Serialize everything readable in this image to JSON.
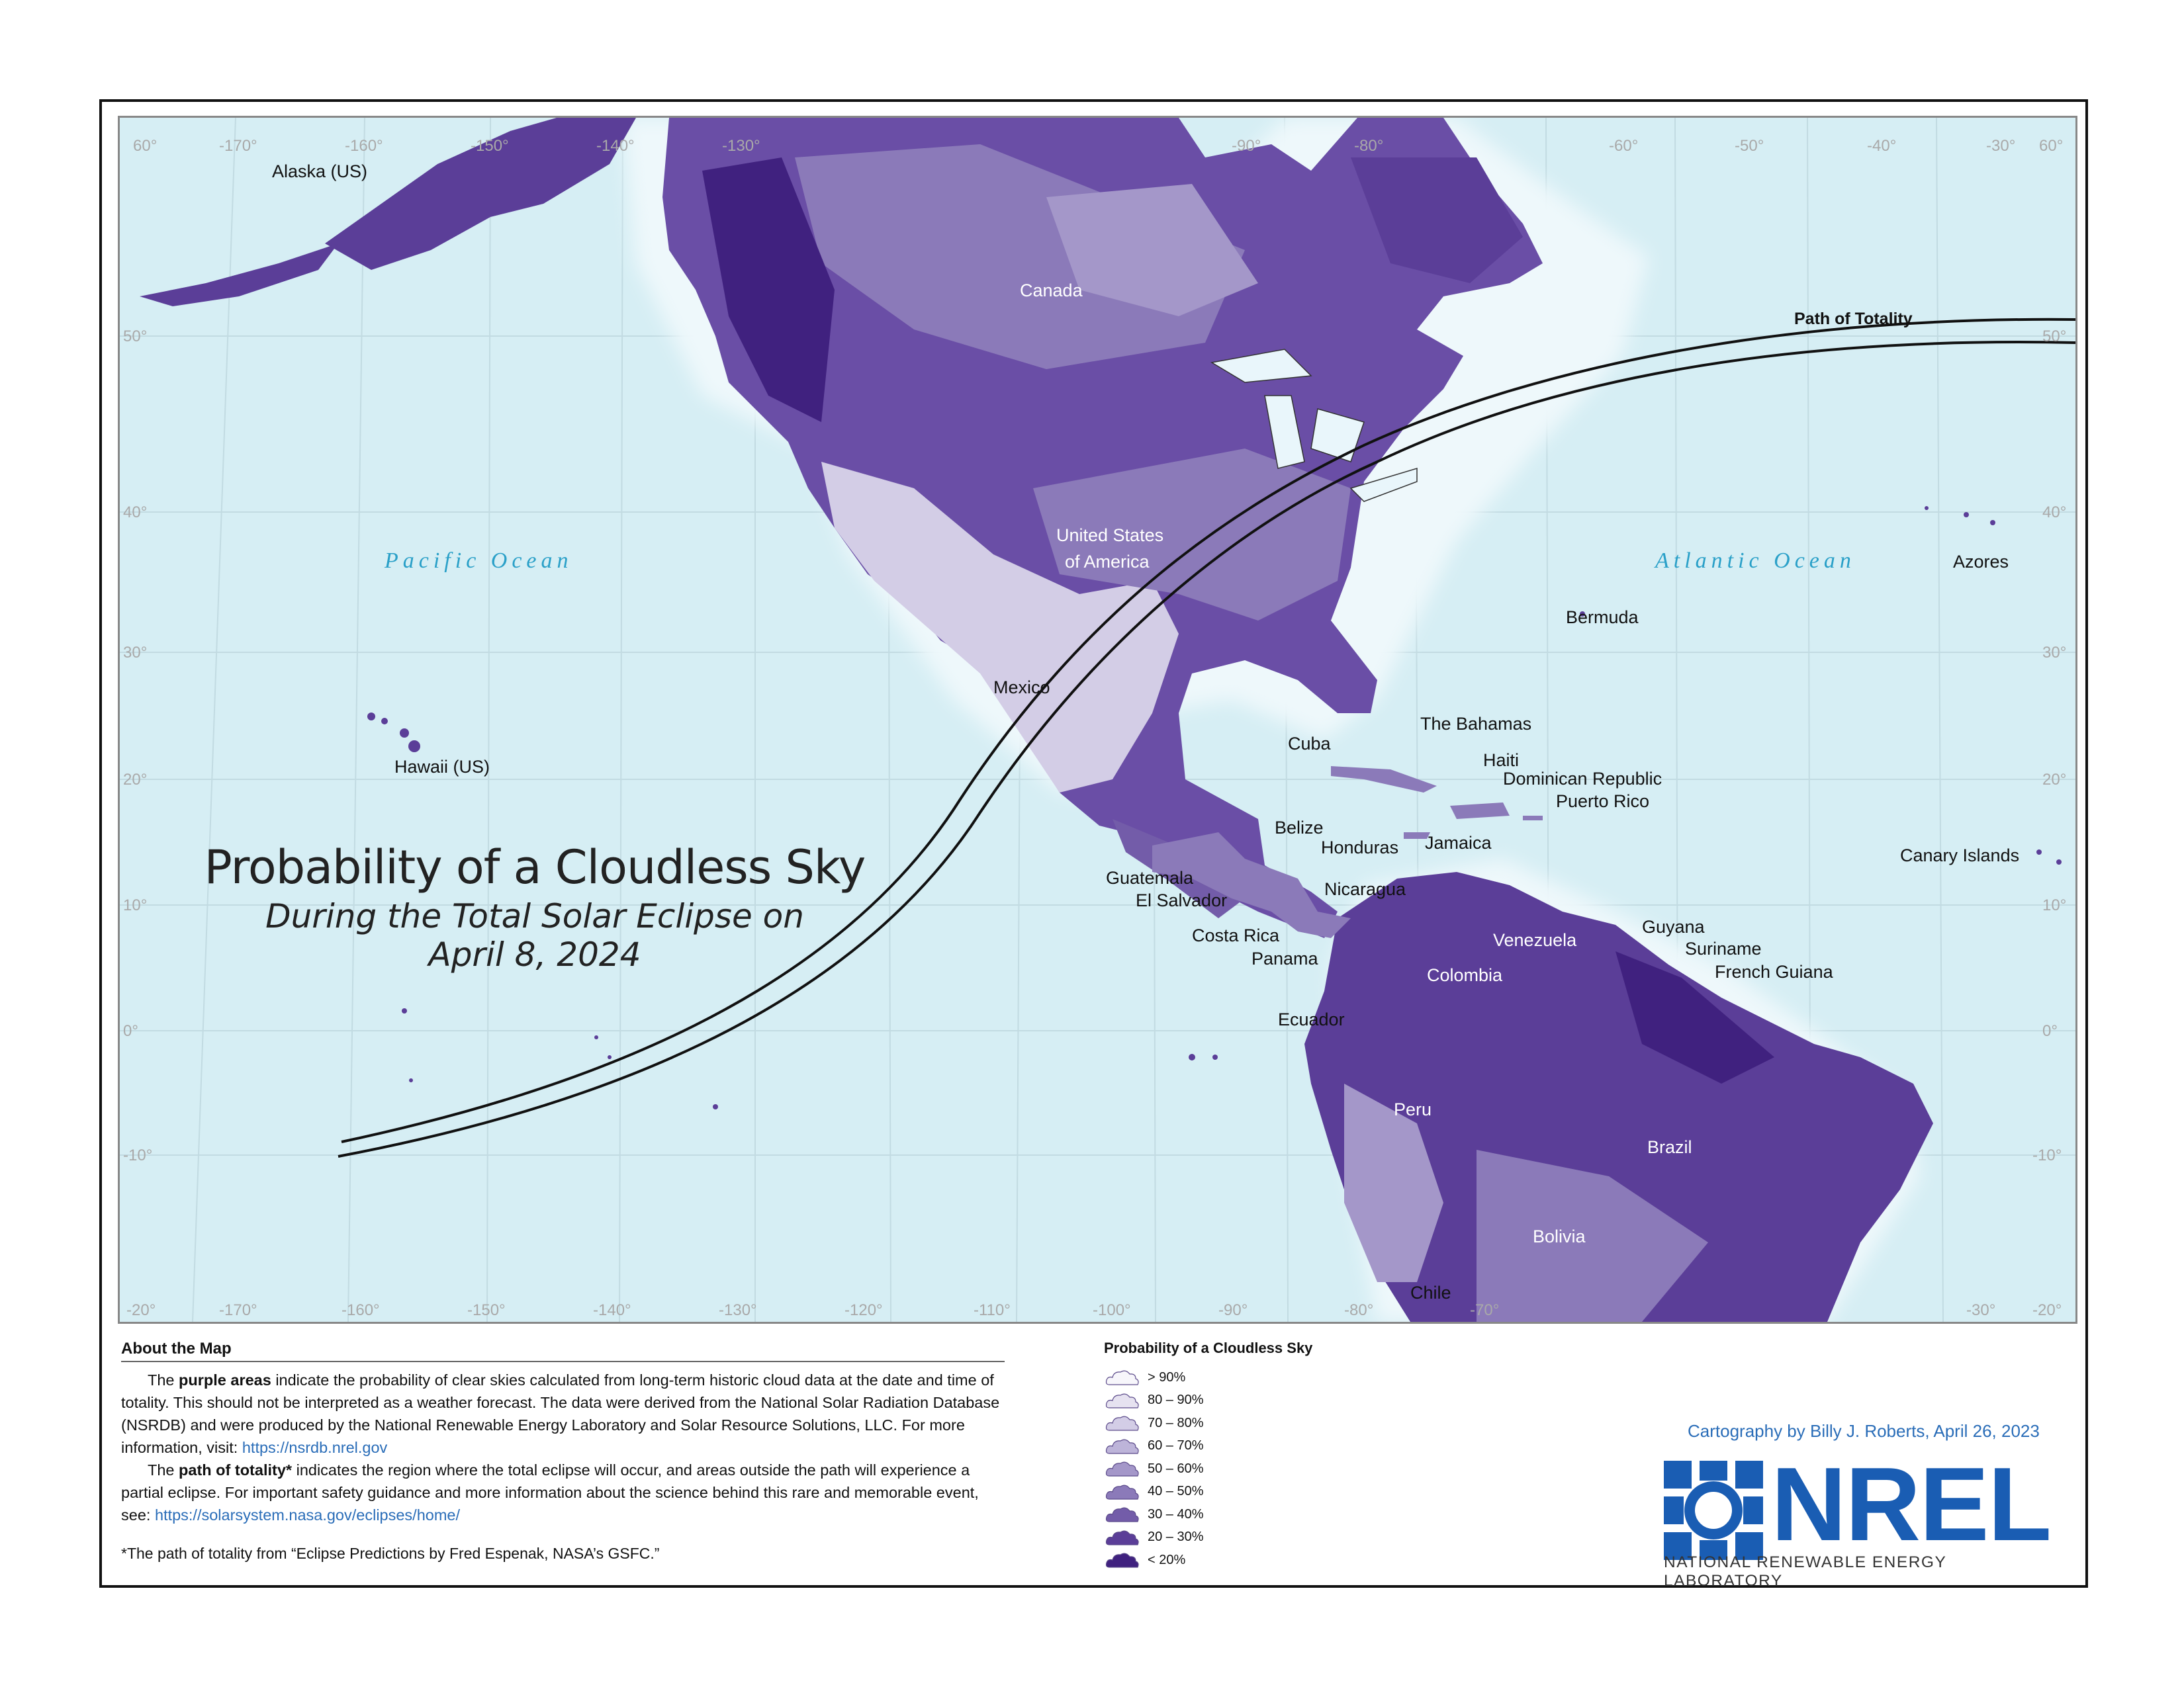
{
  "map": {
    "longitude_labels_top": [
      "60°",
      "-170°",
      "-160°",
      "-150°",
      "-140°",
      "-130°",
      "-90°",
      "-80°",
      "-60°",
      "-50°",
      "-40°",
      "-30°",
      "60°"
    ],
    "longitude_labels_bottom": [
      "-20°",
      "-170°",
      "-160°",
      "-150°",
      "-140°",
      "-130°",
      "-120°",
      "-110°",
      "-100°",
      "-90°",
      "-80°",
      "-70°",
      "-30°",
      "-20°"
    ],
    "latitude_labels": [
      "50°",
      "40°",
      "30°",
      "20°",
      "10°",
      "0°",
      "-10°"
    ],
    "ocean_labels": {
      "pacific": "Pacific Ocean",
      "atlantic": "Atlantic Ocean"
    },
    "path_label": "Path of Totality",
    "places": {
      "alaska": "Alaska (US)",
      "canada": "Canada",
      "usa_1": "United States",
      "usa_2": "of America",
      "mexico": "Mexico",
      "hawaii": "Hawaii (US)",
      "azores": "Azores",
      "bermuda": "Bermuda",
      "bahamas": "The Bahamas",
      "cuba": "Cuba",
      "haiti": "Haiti",
      "dominican": "Dominican Republic",
      "puerto_rico": "Puerto Rico",
      "belize": "Belize",
      "honduras": "Honduras",
      "jamaica": "Jamaica",
      "canary": "Canary Islands",
      "guatemala": "Guatemala",
      "el_salvador": "El Salvador",
      "nicaragua": "Nicaragua",
      "costa_rica": "Costa Rica",
      "panama": "Panama",
      "guyana": "Guyana",
      "suriname": "Suriname",
      "french_guiana": "French Guiana",
      "venezuela": "Venezuela",
      "colombia": "Colombia",
      "ecuador": "Ecuador",
      "peru": "Peru",
      "brazil": "Brazil",
      "bolivia": "Bolivia",
      "chile": "Chile"
    }
  },
  "title": {
    "line1": "Probability of a Cloudless Sky",
    "line2": "During the Total Solar Eclipse on",
    "line3": "April 8, 2024"
  },
  "about": {
    "heading": "About the Map",
    "p1_pre": "The ",
    "p1_bold": "purple areas",
    "p1_text": " indicate the probability of clear skies calculated from long-term historic cloud data at the date and time of totality. This should not be interpreted as a weather forecast. The data were derived from the National Solar Radiation Database (NSRDB) and were produced by the National Renewable Energy Laboratory and Solar Resource Solutions, LLC. For more information, visit: ",
    "p1_link": "https://nsrdb.nrel.gov",
    "p2_pre": "The ",
    "p2_bold": "path of totality*",
    "p2_text": " indicates the region where the total eclipse will occur, and areas outside the path will experience a partial eclipse. For important safety guidance and more information about the science behind this rare and memorable event, see: ",
    "p2_link": "https://solarsystem.nasa.gov/eclipses/home/",
    "footnote": "*The path of totality from “Eclipse Predictions by Fred Espenak, NASA’s GSFC.”"
  },
  "legend": {
    "title": "Probability of a Cloudless Sky",
    "items": [
      {
        "label": "> 90%",
        "color": "#f7f6fb"
      },
      {
        "label": "80 – 90%",
        "color": "#e6e2f0"
      },
      {
        "label": "70 – 80%",
        "color": "#d3cde6"
      },
      {
        "label": "60 – 70%",
        "color": "#bdb4d9"
      },
      {
        "label": "50 – 60%",
        "color": "#a497c9"
      },
      {
        "label": "40 – 50%",
        "color": "#8b7ab9"
      },
      {
        "label": "30 – 40%",
        "color": "#735ca9"
      },
      {
        "label": "20 – 30%",
        "color": "#5b3e98"
      },
      {
        "label": "< 20%",
        "color": "#40217f"
      }
    ]
  },
  "credit": "Cartography by Billy J. Roberts,  April 26, 2023",
  "logo": {
    "word": "NREL",
    "subtitle": "NATIONAL RENEWABLE ENERGY LABORATORY",
    "color": "#1a5db3"
  }
}
